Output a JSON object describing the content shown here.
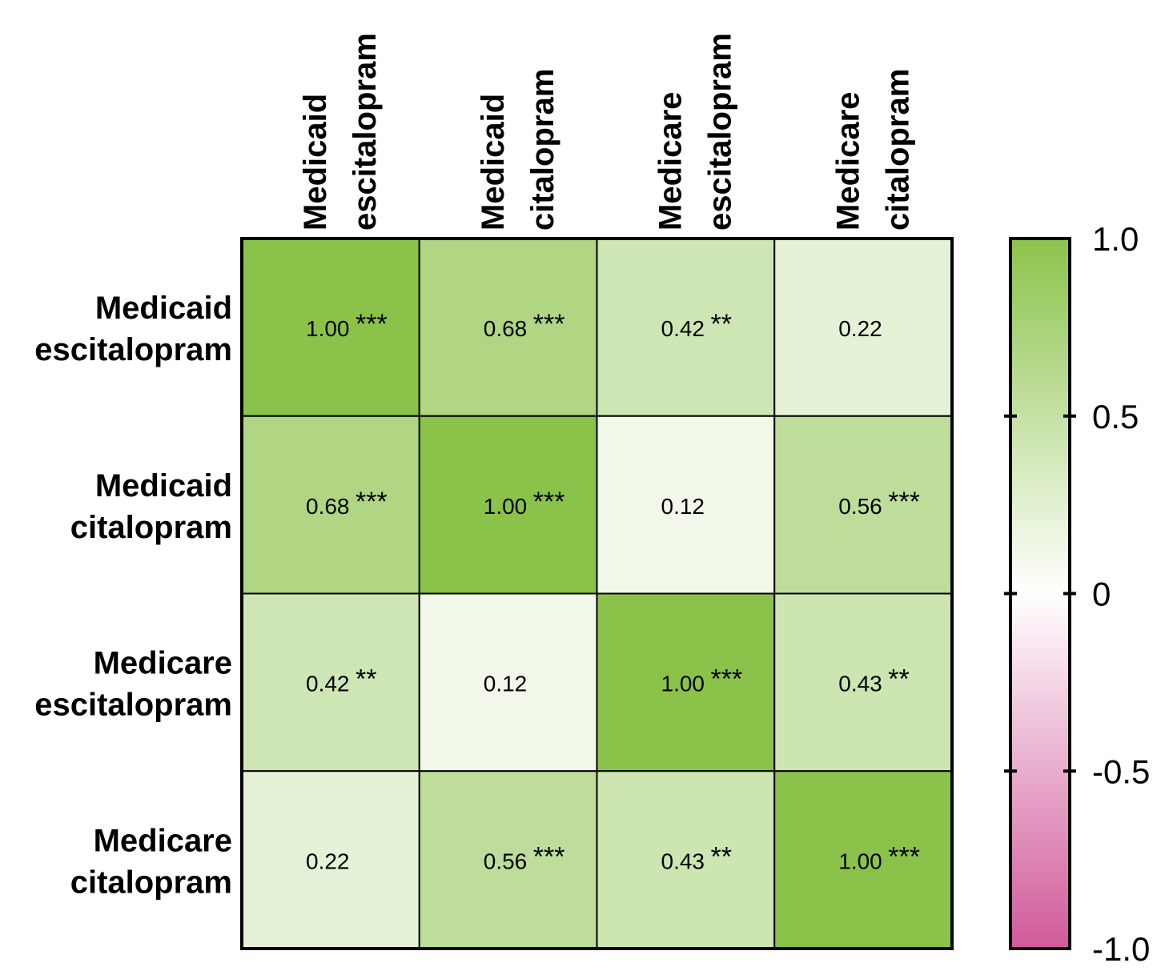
{
  "chart_data": {
    "type": "heatmap",
    "title": "",
    "row_labels": [
      [
        "Medicaid",
        "escitalopram"
      ],
      [
        "Medicaid",
        "citalopram"
      ],
      [
        "Medicare",
        "escitalopram"
      ],
      [
        "Medicare",
        "citalopram"
      ]
    ],
    "col_labels": [
      [
        "Medicaid",
        "escitalopram"
      ],
      [
        "Medicaid",
        "citalopram"
      ],
      [
        "Medicare",
        "escitalopram"
      ],
      [
        "Medicare",
        "citalopram"
      ]
    ],
    "values": [
      [
        1.0,
        0.68,
        0.42,
        0.22
      ],
      [
        0.68,
        1.0,
        0.12,
        0.56
      ],
      [
        0.42,
        0.12,
        1.0,
        0.43
      ],
      [
        0.22,
        0.56,
        0.43,
        1.0
      ]
    ],
    "value_labels": [
      [
        "1.00",
        "0.68",
        "0.42",
        "0.22"
      ],
      [
        "0.68",
        "1.00",
        "0.12",
        "0.56"
      ],
      [
        "0.42",
        "0.12",
        "1.00",
        "0.43"
      ],
      [
        "0.22",
        "0.56",
        "0.43",
        "1.00"
      ]
    ],
    "significance": [
      [
        "***",
        "***",
        "**",
        ""
      ],
      [
        "***",
        "***",
        "",
        "***"
      ],
      [
        "**",
        "",
        "***",
        "**"
      ],
      [
        "",
        "***",
        "**",
        "***"
      ]
    ],
    "colorbar": {
      "range": [
        -1.0,
        1.0
      ],
      "ticks": [
        1.0,
        0.5,
        0,
        -0.5,
        -1.0
      ],
      "tick_labels": [
        "1.0",
        "0.5",
        "0",
        "-0.5",
        "-1.0"
      ],
      "high_color": "#8BC34A",
      "mid_color": "#FFFFFF",
      "low_color": "#D15A9A"
    }
  }
}
